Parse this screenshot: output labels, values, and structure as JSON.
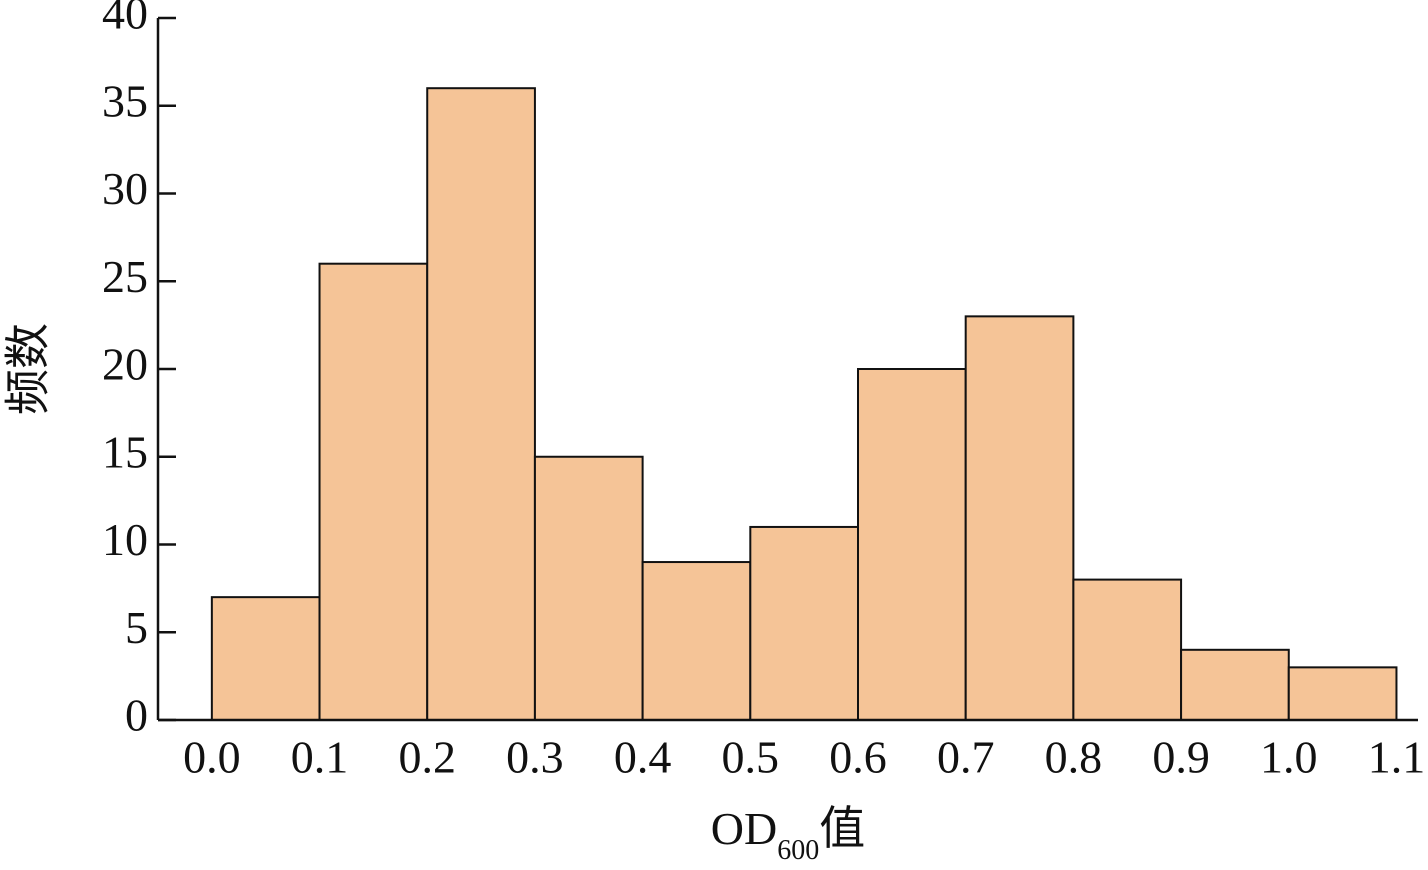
{
  "chart_data": {
    "type": "histogram",
    "bins": [
      0,
      0.1,
      0.2,
      0.3,
      0.4,
      0.5,
      0.6,
      0.7,
      0.8,
      0.9,
      1,
      1.1
    ],
    "values": [
      7,
      26,
      36,
      15,
      9,
      11,
      20,
      23,
      8,
      4,
      3
    ],
    "color": "#f5c497",
    "xlim": [
      -0.05,
      1.12
    ],
    "ylim": [
      0,
      40
    ],
    "xticks": [
      {
        "value": 0,
        "label": "0.0"
      },
      0.1,
      0.2,
      0.3,
      0.4,
      0.5,
      0.6,
      0.7,
      0.8,
      0.9,
      {
        "value": 1,
        "label": "1.0"
      },
      1.1
    ],
    "yticks": [
      0,
      5,
      10,
      15,
      20,
      25,
      30,
      35,
      40
    ],
    "x_label": {
      "main": "OD",
      "subscript": "600",
      "suffix": "值"
    },
    "y_label": "频数"
  }
}
